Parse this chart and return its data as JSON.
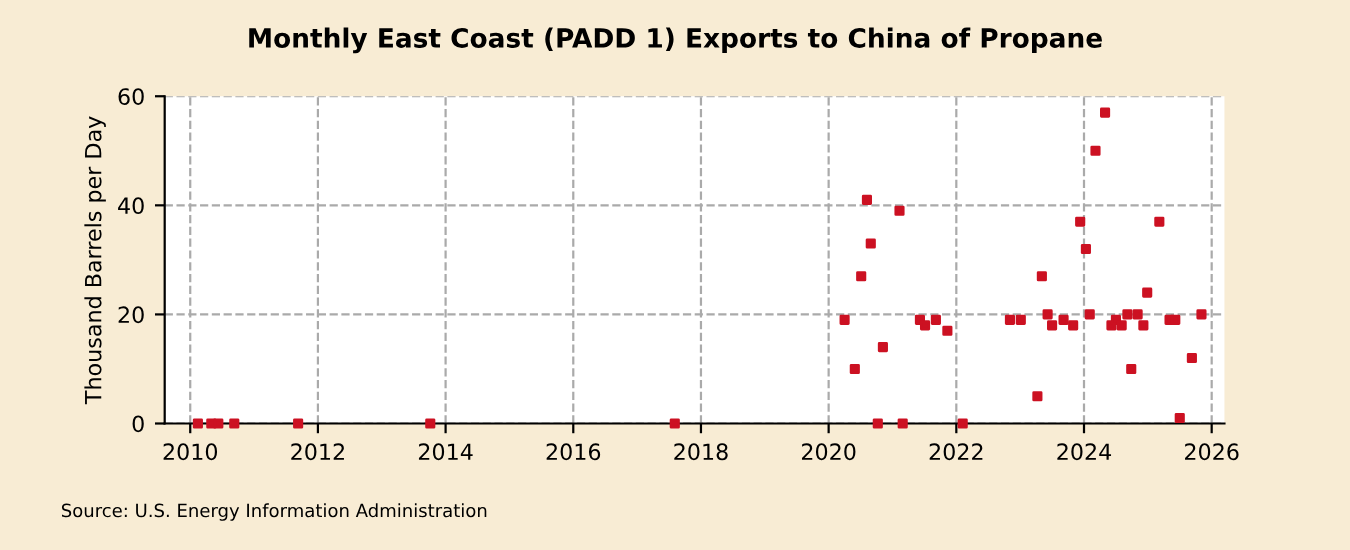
{
  "chart_data": {
    "type": "scatter",
    "title": "Monthly East Coast (PADD 1) Exports to China of Propane",
    "ylabel": "Thousand Barrels per Day",
    "annotations": [
      "Source: U.S. Energy Information Administration"
    ],
    "series": [
      {
        "color": "#cc1122",
        "x": [
          2010.12,
          2010.33,
          2010.44,
          2010.69,
          2011.69,
          2013.76,
          2017.59,
          2020.25,
          2020.41,
          2020.51,
          2020.6,
          2020.66,
          2020.77,
          2020.85,
          2021.11,
          2021.16,
          2021.43,
          2021.51,
          2021.68,
          2021.86,
          2022.1,
          2022.84,
          2023.01,
          2023.27,
          2023.34,
          2023.43,
          2023.5,
          2023.68,
          2023.83,
          2023.94,
          2024.03,
          2024.09,
          2024.18,
          2024.33,
          2024.43,
          2024.5,
          2024.59,
          2024.68,
          2024.74,
          2024.84,
          2024.93,
          2024.99,
          2025.18,
          2025.34,
          2025.43,
          2025.5,
          2025.69,
          2025.84
        ],
        "values": [
          0,
          0,
          0,
          0,
          0,
          0,
          0,
          19,
          10,
          27,
          41,
          33,
          0,
          14,
          39,
          0,
          19,
          18,
          19,
          17,
          0,
          19,
          19,
          5,
          27,
          20,
          18,
          19,
          18,
          37,
          32,
          20,
          50,
          57,
          18,
          19,
          18,
          20,
          10,
          20,
          18,
          24,
          37,
          19,
          19,
          1,
          12,
          20
        ]
      }
    ],
    "xlim": [
      2009.6,
      2026.2
    ],
    "xticks": [
      2010,
      2012,
      2014,
      2016,
      2018,
      2020,
      2022,
      2024,
      2026
    ],
    "ylim": [
      0,
      60
    ],
    "yticks": [
      0,
      20,
      40,
      60
    ],
    "grid": true,
    "marker": "square"
  }
}
